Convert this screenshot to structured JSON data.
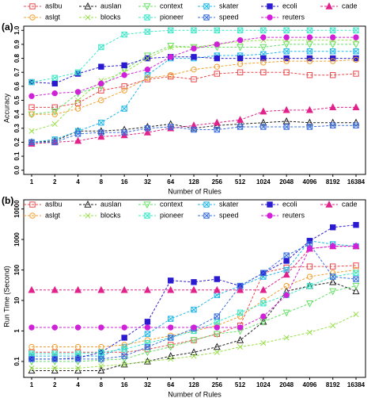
{
  "chart_data": [
    {
      "type": "line",
      "panel_label": "(a)",
      "x_label": "Number of Rules",
      "y_label": "Accuracy",
      "categories": [
        "1",
        "2",
        "4",
        "8",
        "16",
        "32",
        "64",
        "128",
        "256",
        "512",
        "1024",
        "2048",
        "4096",
        "8192",
        "16384"
      ],
      "ylim": [
        -0.03,
        1.03
      ],
      "log_y": false,
      "yticks": [
        {
          "value": 0,
          "label": "0.0"
        },
        0.1,
        0.2,
        0.3,
        0.4,
        0.5,
        0.6,
        0.7,
        0.8,
        0.9,
        {
          "value": 1,
          "label": "1.0"
        }
      ],
      "series": [
        {
          "name": "aslbu",
          "color": "#e8474a",
          "marker": "square",
          "values": [
            0.45,
            0.45,
            0.48,
            0.57,
            0.6,
            0.65,
            0.67,
            0.65,
            0.69,
            0.7,
            0.7,
            0.7,
            0.68,
            0.68,
            0.69
          ]
        },
        {
          "name": "auslan",
          "color": "#222222",
          "marker": "triangle",
          "values": [
            0.2,
            0.21,
            0.28,
            0.28,
            0.29,
            0.31,
            0.33,
            0.3,
            0.32,
            0.33,
            0.34,
            0.35,
            0.34,
            0.34,
            0.34
          ]
        },
        {
          "name": "context",
          "color": "#66e066",
          "marker": "triangle-down",
          "values": [
            0.4,
            0.42,
            0.55,
            0.6,
            0.72,
            0.82,
            0.89,
            0.88,
            0.88,
            0.88,
            0.88,
            0.9,
            0.9,
            0.9,
            0.9
          ]
        },
        {
          "name": "skater",
          "color": "#22b8e8",
          "marker": "x-square",
          "values": [
            0.2,
            0.22,
            0.28,
            0.34,
            0.44,
            0.68,
            0.8,
            0.8,
            0.82,
            0.82,
            0.83,
            0.85,
            0.85,
            0.85,
            0.85
          ]
        },
        {
          "name": "ecoli",
          "color": "#2a1ad0",
          "marker": "filled-square",
          "values": [
            0.63,
            0.62,
            0.69,
            0.74,
            0.75,
            0.8,
            0.81,
            0.81,
            0.8,
            0.8,
            0.8,
            0.8,
            0.8,
            0.8,
            0.8
          ]
        },
        {
          "name": "cade",
          "color": "#e0228a",
          "marker": "filled-triangle",
          "values": [
            0.19,
            0.2,
            0.21,
            0.24,
            0.25,
            0.27,
            0.3,
            0.32,
            0.34,
            0.36,
            0.42,
            0.43,
            0.43,
            0.45,
            0.45
          ]
        },
        {
          "name": "aslgt",
          "color": "#f0a030",
          "marker": "circle",
          "values": [
            0.4,
            0.4,
            0.44,
            0.5,
            0.57,
            0.66,
            0.68,
            0.72,
            0.74,
            0.76,
            0.77,
            0.78,
            0.78,
            0.78,
            0.79
          ]
        },
        {
          "name": "blocks",
          "color": "#99e04a",
          "marker": "x",
          "values": [
            0.28,
            0.33,
            0.5,
            0.64,
            0.7,
            0.8,
            0.88,
            0.88,
            0.9,
            0.92,
            0.93,
            0.93,
            0.93,
            0.93,
            0.93
          ]
        },
        {
          "name": "pioneer",
          "color": "#3ce8c8",
          "marker": "x-square",
          "values": [
            0.63,
            0.66,
            0.7,
            0.88,
            0.97,
            0.99,
            1.0,
            1.0,
            1.0,
            1.0,
            1.0,
            1.0,
            1.0,
            1.0,
            1.0
          ]
        },
        {
          "name": "speed",
          "color": "#3a6ee0",
          "marker": "x-square",
          "values": [
            0.2,
            0.2,
            0.26,
            0.27,
            0.27,
            0.3,
            0.31,
            0.29,
            0.29,
            0.31,
            0.31,
            0.31,
            0.31,
            0.32,
            0.32
          ]
        },
        {
          "name": "reuters",
          "color": "#d020d8",
          "marker": "filled-circle",
          "values": [
            0.53,
            0.55,
            0.56,
            0.62,
            0.68,
            0.72,
            0.81,
            0.87,
            0.9,
            0.93,
            0.95,
            0.95,
            0.95,
            0.95,
            0.95
          ]
        }
      ]
    },
    {
      "type": "line",
      "panel_label": "(b)",
      "x_label": "Number of Rules",
      "y_label": "Run Time (Second)",
      "categories": [
        "1",
        "2",
        "4",
        "8",
        "16",
        "32",
        "64",
        "128",
        "256",
        "512",
        "1024",
        "2048",
        "4096",
        "8192",
        "16384"
      ],
      "ylim": [
        0.03,
        20000
      ],
      "log_y": true,
      "yticks": [
        0.1,
        1,
        10,
        100,
        1000,
        10000
      ],
      "series": [
        {
          "name": "aslbu",
          "color": "#e8474a",
          "marker": "square",
          "values": [
            0.2,
            0.2,
            0.2,
            0.2,
            0.2,
            0.25,
            0.35,
            0.5,
            0.8,
            1.5,
            80,
            120,
            130,
            130,
            140
          ]
        },
        {
          "name": "auslan",
          "color": "#222222",
          "marker": "triangle",
          "values": [
            0.05,
            0.05,
            0.05,
            0.05,
            0.08,
            0.1,
            0.15,
            0.2,
            0.3,
            0.5,
            2,
            20,
            30,
            40,
            20
          ]
        },
        {
          "name": "context",
          "color": "#66e066",
          "marker": "triangle-down",
          "values": [
            0.1,
            0.1,
            0.1,
            0.11,
            0.12,
            0.2,
            0.3,
            0.5,
            0.8,
            1,
            2,
            4,
            8,
            20,
            30
          ]
        },
        {
          "name": "skater",
          "color": "#22b8e8",
          "marker": "x-square",
          "values": [
            0.15,
            0.15,
            0.15,
            0.15,
            0.3,
            0.8,
            2.5,
            5,
            15,
            30,
            60,
            100,
            900,
            700,
            600
          ]
        },
        {
          "name": "ecoli",
          "color": "#2a1ad0",
          "marker": "filled-square",
          "values": [
            0.12,
            0.12,
            0.13,
            0.2,
            0.6,
            2,
            45,
            40,
            50,
            30,
            80,
            200,
            900,
            2500,
            3000
          ]
        },
        {
          "name": "cade",
          "color": "#e0228a",
          "marker": "filled-triangle",
          "values": [
            22,
            22,
            22,
            22,
            22,
            22,
            22,
            22,
            22,
            22,
            22,
            70,
            500,
            600,
            600
          ]
        },
        {
          "name": "aslgt",
          "color": "#f0a030",
          "marker": "circle",
          "values": [
            0.3,
            0.3,
            0.3,
            0.3,
            0.35,
            0.5,
            0.7,
            1,
            1.5,
            3,
            10,
            30,
            60,
            80,
            100
          ]
        },
        {
          "name": "blocks",
          "color": "#99e04a",
          "marker": "x",
          "values": [
            0.06,
            0.06,
            0.06,
            0.07,
            0.08,
            0.1,
            0.12,
            0.15,
            0.2,
            0.3,
            0.4,
            0.6,
            0.9,
            1.5,
            3.5
          ]
        },
        {
          "name": "pioneer",
          "color": "#3ce8c8",
          "marker": "x-square",
          "values": [
            0.18,
            0.18,
            0.18,
            0.2,
            0.25,
            0.4,
            0.6,
            1,
            2,
            4,
            8,
            15,
            30,
            60,
            80
          ]
        },
        {
          "name": "speed",
          "color": "#3a6ee0",
          "marker": "x-square",
          "values": [
            0.12,
            0.12,
            0.12,
            0.12,
            0.15,
            0.3,
            0.6,
            1.2,
            3,
            30,
            80,
            300,
            700,
            60,
            50
          ]
        },
        {
          "name": "reuters",
          "color": "#d020d8",
          "marker": "filled-circle",
          "values": [
            1.3,
            1.3,
            1.3,
            1.3,
            1.3,
            1.3,
            1.3,
            1.3,
            1.3,
            1.3,
            3,
            15,
            500,
            600,
            600
          ]
        }
      ]
    }
  ]
}
